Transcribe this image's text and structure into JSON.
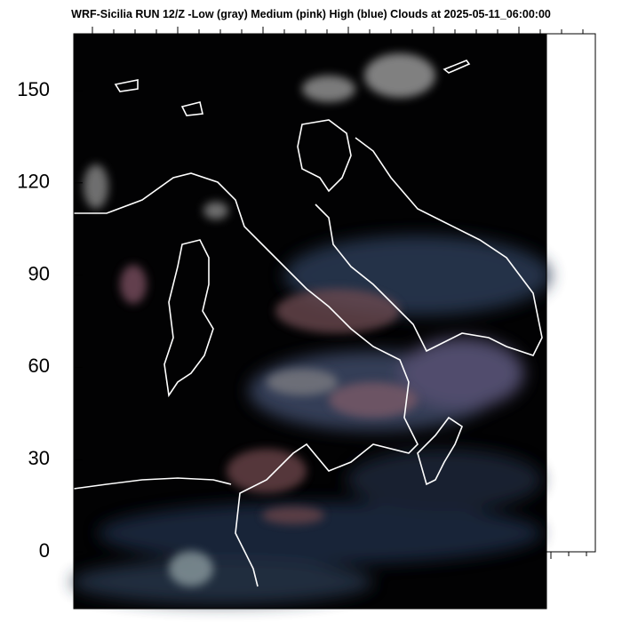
{
  "chart_data": {
    "type": "map",
    "title": "WRF-Sicilia RUN 12/Z -Low (gray) Medium (pink) High (blue) Clouds at 2025-05-11_06:00:00",
    "ylim": [
      -18.5,
      168.5
    ],
    "yticks": [
      0,
      30,
      60,
      90,
      120,
      150
    ]
  }
}
